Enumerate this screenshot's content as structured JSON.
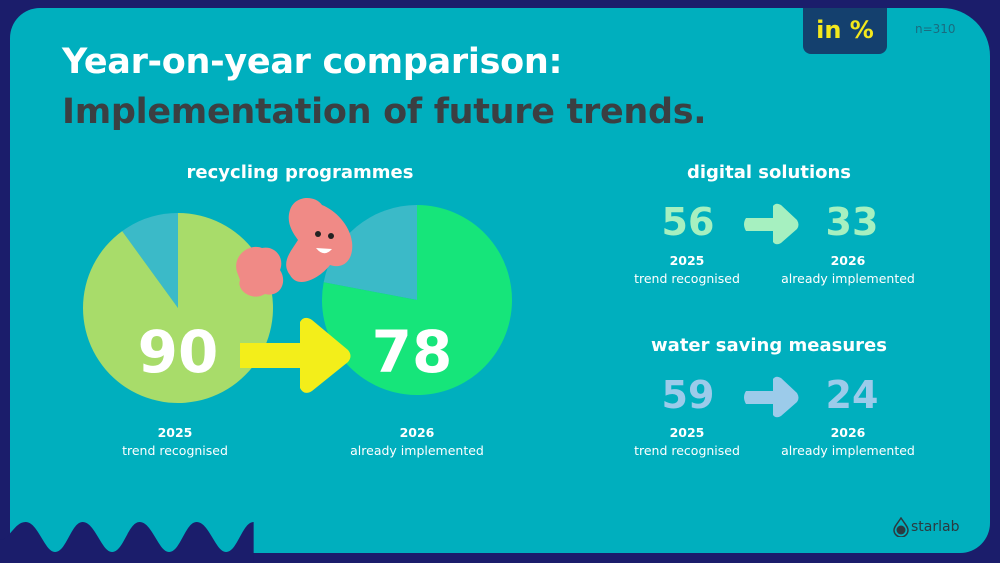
{
  "badge": "in %",
  "sample": "n=310",
  "title_line1": "Year-on-year comparison:",
  "title_line2": "Implementation of future trends.",
  "colors": {
    "background": "#1b1d6b",
    "card": "#00afbe",
    "pie2025": "#a8dc6a",
    "pie2026": "#16e57a",
    "remainder": "#3bbac8",
    "arrow_yellow": "#f3ee1a",
    "digital": "#a6f0c0",
    "water": "#9ccbea",
    "blob": "#f08a86"
  },
  "chart_data": [
    {
      "type": "pie",
      "title": "recycling programmes",
      "unit": "%",
      "series": [
        {
          "year": "2025",
          "label": "trend recognised",
          "value": 90
        },
        {
          "year": "2026",
          "label": "already implemented",
          "value": 78
        }
      ]
    },
    {
      "type": "table",
      "title": "digital solutions",
      "series": [
        {
          "year": "2025",
          "label": "trend recognised",
          "value": 56
        },
        {
          "year": "2026",
          "label": "already implemented",
          "value": 33
        }
      ]
    },
    {
      "type": "table",
      "title": "water saving measures",
      "series": [
        {
          "year": "2025",
          "label": "trend recognised",
          "value": 59
        },
        {
          "year": "2026",
          "label": "already implemented",
          "value": 24
        }
      ]
    }
  ],
  "logo": "starlab"
}
